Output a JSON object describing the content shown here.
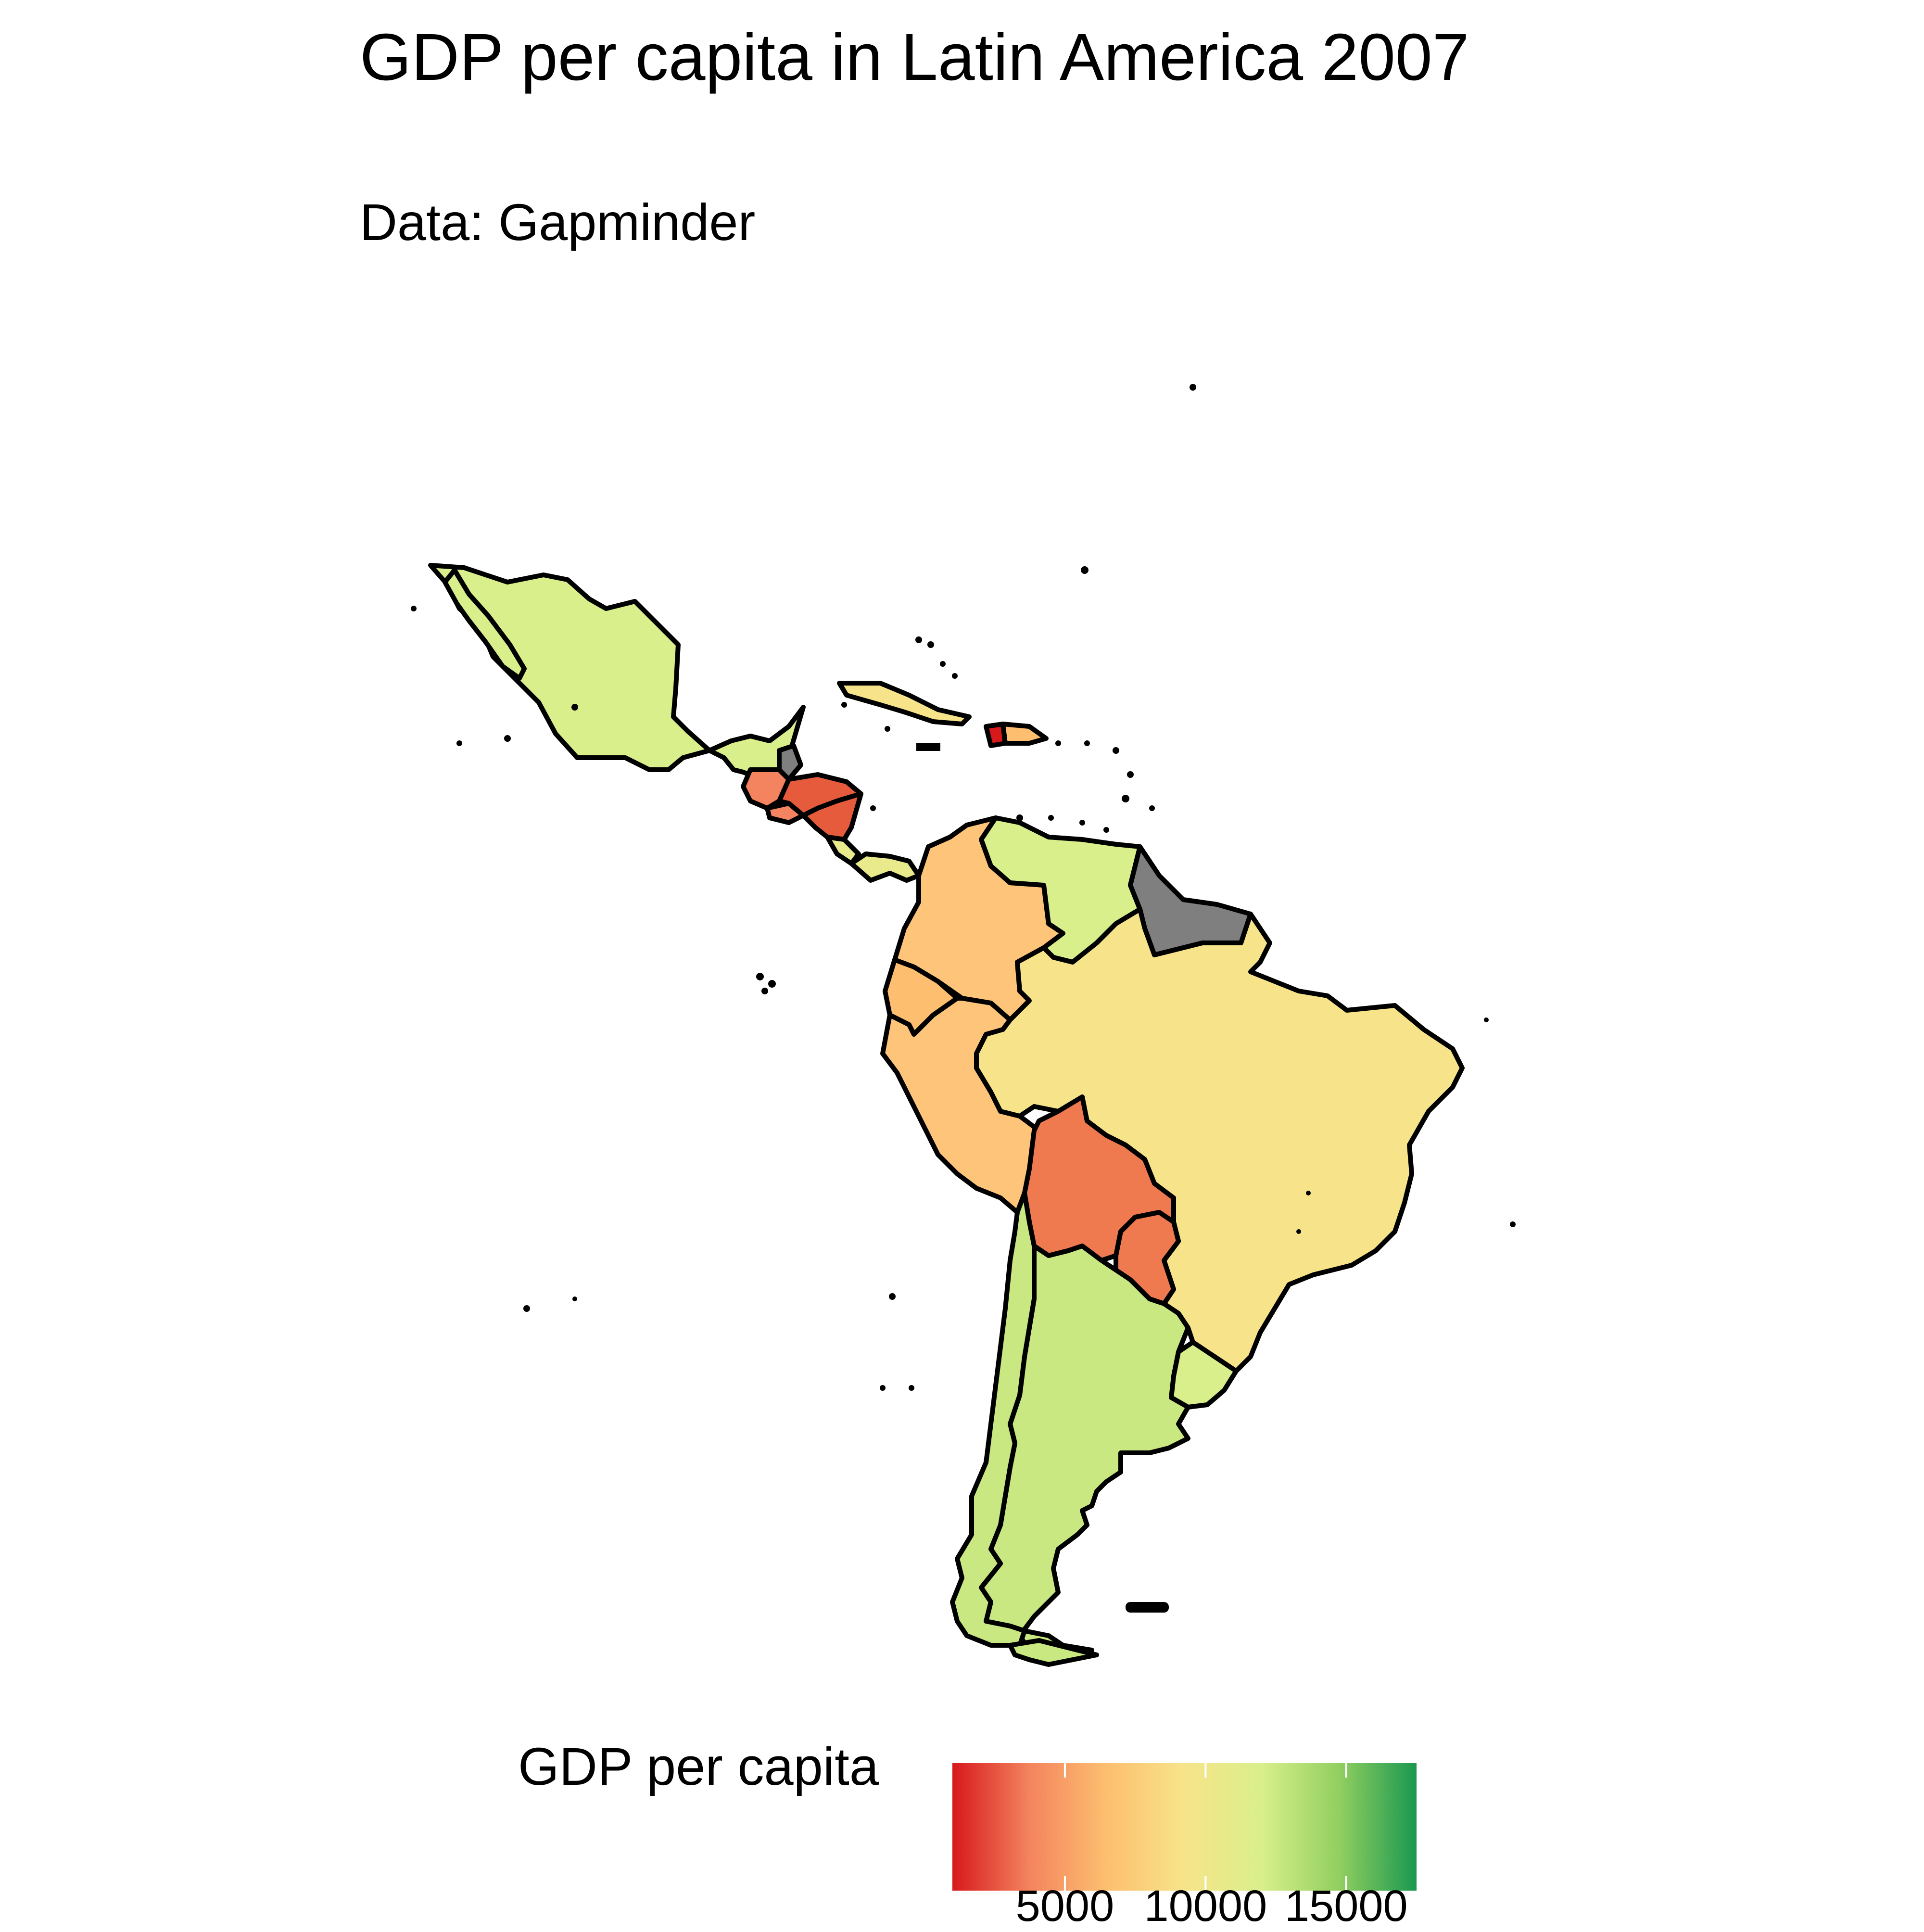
{
  "title": "GDP per capita in Latin America 2007",
  "subtitle": "Data: Gapminder",
  "map": {
    "region": "Latin America",
    "year": "2007",
    "missing_color": "#7f7f7f",
    "border_color": "#000000"
  },
  "legend": {
    "title": "GDP per capita",
    "palette": [
      "#d7191c",
      "#f4845f",
      "#fdbf6f",
      "#f7e48a",
      "#d9ef8b",
      "#91cf60",
      "#1a9850"
    ],
    "ticks": [
      {
        "label": "5000",
        "value": 5000
      },
      {
        "label": "10000",
        "value": 10000
      },
      {
        "label": "15000",
        "value": 15000
      }
    ],
    "range": [
      1000,
      17500
    ]
  },
  "colors": {
    "mexico": "#d9ef8b",
    "guatemala": "#f4845f",
    "honduras": "#e55b3c",
    "nicaragua": "#e55b3c",
    "el_salvador": "#f4845f",
    "costa_rica": "#e8ea8c",
    "panama": "#e8ea8c",
    "belize": "#7f7f7f",
    "cuba": "#f7e48a",
    "haiti": "#d7191c",
    "dominican_republic": "#fdbf6f",
    "colombia": "#fdc47a",
    "venezuela": "#d9ef8b",
    "guianas": "#7f7f7f",
    "ecuador": "#fdbf6f",
    "peru": "#fdc47a",
    "brazil": "#f7e48a",
    "bolivia": "#f07a50",
    "paraguay": "#f07a50",
    "uruguay": "#d9ef8b",
    "argentina": "#c9e882",
    "chile": "#c9e882"
  }
}
